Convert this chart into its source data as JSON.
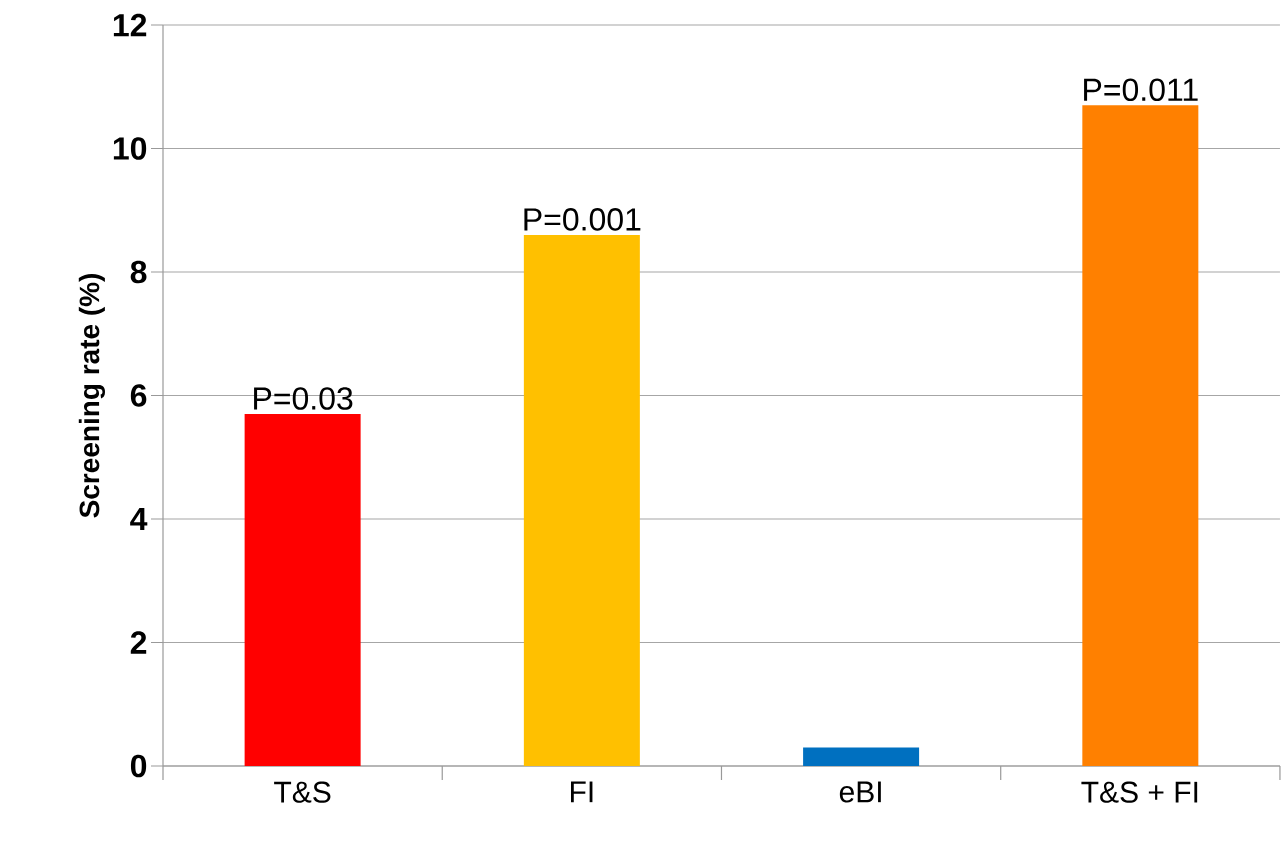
{
  "chart_data": {
    "type": "bar",
    "ylabel": "Screening rate (%)",
    "categories": [
      "T&S",
      "FI",
      "eBI",
      "T&S + FI"
    ],
    "values": [
      5.7,
      8.6,
      0.3,
      10.7
    ],
    "colors": [
      "#ff0000",
      "#ffc000",
      "#0070c0",
      "#ff8000"
    ],
    "ylim": [
      0,
      12
    ],
    "yticks": [
      0,
      2,
      4,
      6,
      8,
      10,
      12
    ],
    "grid": "y",
    "annotations": [
      {
        "text": "P=0.03",
        "x": "T&S",
        "y": 5.7
      },
      {
        "text": "P=0.001",
        "x": "FI",
        "y": 8.6
      },
      {
        "text": "P=0.011",
        "x": "T&S + FI",
        "y": 10.7
      }
    ]
  }
}
